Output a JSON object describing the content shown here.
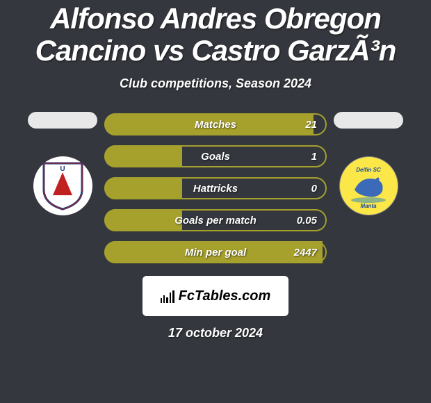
{
  "header": {
    "title": "Alfonso Andres Obregon Cancino vs Castro GarzÃ³n",
    "subtitle": "Club competitions, Season 2024"
  },
  "colors": {
    "background": "#34373d",
    "bar_fill": "#a6a02c",
    "bar_border": "#a6a02c",
    "text": "#ffffff",
    "logo_bg": "#ffffff"
  },
  "players": {
    "left": {
      "photo_placeholder": true,
      "team_badge_bg": "#ffffff",
      "team_badge_inner": "U"
    },
    "right": {
      "photo_placeholder": true,
      "team_badge_bg": "#fce748",
      "team_badge_inner": "Delfin SC"
    }
  },
  "stats": [
    {
      "label": "Matches",
      "value": "21",
      "fill_pct": 94
    },
    {
      "label": "Goals",
      "value": "1",
      "fill_pct": 35
    },
    {
      "label": "Hattricks",
      "value": "0",
      "fill_pct": 35
    },
    {
      "label": "Goals per match",
      "value": "0.05",
      "fill_pct": 35
    },
    {
      "label": "Min per goal",
      "value": "2447",
      "fill_pct": 98
    }
  ],
  "footer": {
    "logo": "FcTables.com",
    "date": "17 october 2024"
  },
  "typography": {
    "title_fontsize": 42,
    "subtitle_fontsize": 18,
    "stat_fontsize": 15,
    "date_fontsize": 18
  }
}
